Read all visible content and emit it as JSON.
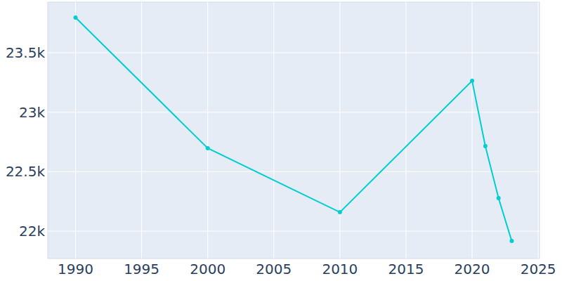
{
  "chart_data": {
    "type": "line",
    "x": [
      1990,
      2000,
      2010,
      2020,
      2021,
      2022,
      2023
    ],
    "values": [
      23795,
      22697,
      22159,
      23264,
      22715,
      22278,
      21917
    ],
    "color": "#00ced1",
    "marker": "circle",
    "xlim": [
      1987.9,
      2025.1
    ],
    "xticks": [
      1990,
      1995,
      2000,
      2005,
      2010,
      2015,
      2020,
      2025
    ],
    "ylim": [
      21770,
      23925
    ],
    "yticks": [
      {
        "value": 22000,
        "label": "22k"
      },
      {
        "value": 22500,
        "label": "22.5k"
      },
      {
        "value": 23000,
        "label": "23k"
      },
      {
        "value": 23500,
        "label": "23.5k"
      }
    ],
    "grid": true
  }
}
